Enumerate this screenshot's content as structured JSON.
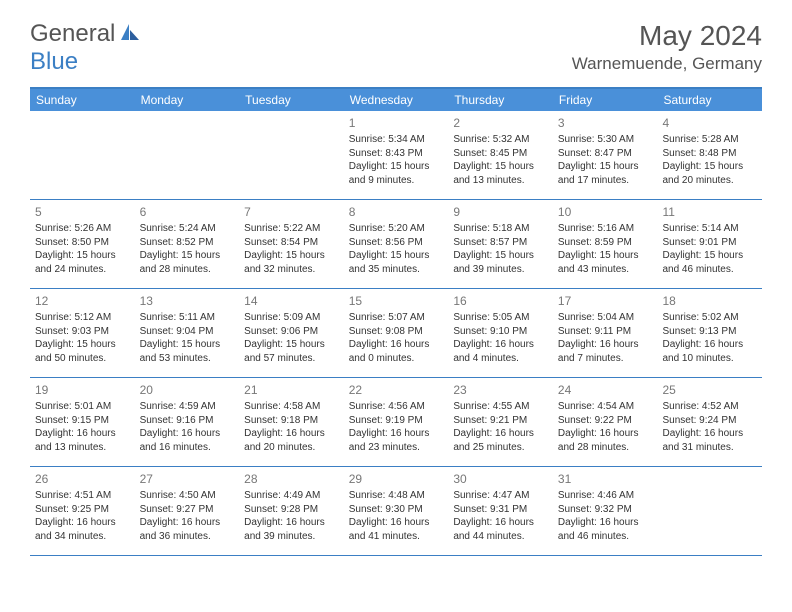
{
  "logo": {
    "text1": "General",
    "text2": "Blue"
  },
  "title": "May 2024",
  "location": "Warnemuende, Germany",
  "colors": {
    "header_bg": "#4a90d9",
    "border": "#3b7fc4",
    "text_gray": "#555555",
    "cell_text": "#333333",
    "daynum": "#777777",
    "white": "#ffffff"
  },
  "day_names": [
    "Sunday",
    "Monday",
    "Tuesday",
    "Wednesday",
    "Thursday",
    "Friday",
    "Saturday"
  ],
  "weeks": [
    [
      {
        "n": "",
        "empty": true
      },
      {
        "n": "",
        "empty": true
      },
      {
        "n": "",
        "empty": true
      },
      {
        "n": "1",
        "sunrise": "Sunrise: 5:34 AM",
        "sunset": "Sunset: 8:43 PM",
        "daylight": "Daylight: 15 hours and 9 minutes."
      },
      {
        "n": "2",
        "sunrise": "Sunrise: 5:32 AM",
        "sunset": "Sunset: 8:45 PM",
        "daylight": "Daylight: 15 hours and 13 minutes."
      },
      {
        "n": "3",
        "sunrise": "Sunrise: 5:30 AM",
        "sunset": "Sunset: 8:47 PM",
        "daylight": "Daylight: 15 hours and 17 minutes."
      },
      {
        "n": "4",
        "sunrise": "Sunrise: 5:28 AM",
        "sunset": "Sunset: 8:48 PM",
        "daylight": "Daylight: 15 hours and 20 minutes."
      }
    ],
    [
      {
        "n": "5",
        "sunrise": "Sunrise: 5:26 AM",
        "sunset": "Sunset: 8:50 PM",
        "daylight": "Daylight: 15 hours and 24 minutes."
      },
      {
        "n": "6",
        "sunrise": "Sunrise: 5:24 AM",
        "sunset": "Sunset: 8:52 PM",
        "daylight": "Daylight: 15 hours and 28 minutes."
      },
      {
        "n": "7",
        "sunrise": "Sunrise: 5:22 AM",
        "sunset": "Sunset: 8:54 PM",
        "daylight": "Daylight: 15 hours and 32 minutes."
      },
      {
        "n": "8",
        "sunrise": "Sunrise: 5:20 AM",
        "sunset": "Sunset: 8:56 PM",
        "daylight": "Daylight: 15 hours and 35 minutes."
      },
      {
        "n": "9",
        "sunrise": "Sunrise: 5:18 AM",
        "sunset": "Sunset: 8:57 PM",
        "daylight": "Daylight: 15 hours and 39 minutes."
      },
      {
        "n": "10",
        "sunrise": "Sunrise: 5:16 AM",
        "sunset": "Sunset: 8:59 PM",
        "daylight": "Daylight: 15 hours and 43 minutes."
      },
      {
        "n": "11",
        "sunrise": "Sunrise: 5:14 AM",
        "sunset": "Sunset: 9:01 PM",
        "daylight": "Daylight: 15 hours and 46 minutes."
      }
    ],
    [
      {
        "n": "12",
        "sunrise": "Sunrise: 5:12 AM",
        "sunset": "Sunset: 9:03 PM",
        "daylight": "Daylight: 15 hours and 50 minutes."
      },
      {
        "n": "13",
        "sunrise": "Sunrise: 5:11 AM",
        "sunset": "Sunset: 9:04 PM",
        "daylight": "Daylight: 15 hours and 53 minutes."
      },
      {
        "n": "14",
        "sunrise": "Sunrise: 5:09 AM",
        "sunset": "Sunset: 9:06 PM",
        "daylight": "Daylight: 15 hours and 57 minutes."
      },
      {
        "n": "15",
        "sunrise": "Sunrise: 5:07 AM",
        "sunset": "Sunset: 9:08 PM",
        "daylight": "Daylight: 16 hours and 0 minutes."
      },
      {
        "n": "16",
        "sunrise": "Sunrise: 5:05 AM",
        "sunset": "Sunset: 9:10 PM",
        "daylight": "Daylight: 16 hours and 4 minutes."
      },
      {
        "n": "17",
        "sunrise": "Sunrise: 5:04 AM",
        "sunset": "Sunset: 9:11 PM",
        "daylight": "Daylight: 16 hours and 7 minutes."
      },
      {
        "n": "18",
        "sunrise": "Sunrise: 5:02 AM",
        "sunset": "Sunset: 9:13 PM",
        "daylight": "Daylight: 16 hours and 10 minutes."
      }
    ],
    [
      {
        "n": "19",
        "sunrise": "Sunrise: 5:01 AM",
        "sunset": "Sunset: 9:15 PM",
        "daylight": "Daylight: 16 hours and 13 minutes."
      },
      {
        "n": "20",
        "sunrise": "Sunrise: 4:59 AM",
        "sunset": "Sunset: 9:16 PM",
        "daylight": "Daylight: 16 hours and 16 minutes."
      },
      {
        "n": "21",
        "sunrise": "Sunrise: 4:58 AM",
        "sunset": "Sunset: 9:18 PM",
        "daylight": "Daylight: 16 hours and 20 minutes."
      },
      {
        "n": "22",
        "sunrise": "Sunrise: 4:56 AM",
        "sunset": "Sunset: 9:19 PM",
        "daylight": "Daylight: 16 hours and 23 minutes."
      },
      {
        "n": "23",
        "sunrise": "Sunrise: 4:55 AM",
        "sunset": "Sunset: 9:21 PM",
        "daylight": "Daylight: 16 hours and 25 minutes."
      },
      {
        "n": "24",
        "sunrise": "Sunrise: 4:54 AM",
        "sunset": "Sunset: 9:22 PM",
        "daylight": "Daylight: 16 hours and 28 minutes."
      },
      {
        "n": "25",
        "sunrise": "Sunrise: 4:52 AM",
        "sunset": "Sunset: 9:24 PM",
        "daylight": "Daylight: 16 hours and 31 minutes."
      }
    ],
    [
      {
        "n": "26",
        "sunrise": "Sunrise: 4:51 AM",
        "sunset": "Sunset: 9:25 PM",
        "daylight": "Daylight: 16 hours and 34 minutes."
      },
      {
        "n": "27",
        "sunrise": "Sunrise: 4:50 AM",
        "sunset": "Sunset: 9:27 PM",
        "daylight": "Daylight: 16 hours and 36 minutes."
      },
      {
        "n": "28",
        "sunrise": "Sunrise: 4:49 AM",
        "sunset": "Sunset: 9:28 PM",
        "daylight": "Daylight: 16 hours and 39 minutes."
      },
      {
        "n": "29",
        "sunrise": "Sunrise: 4:48 AM",
        "sunset": "Sunset: 9:30 PM",
        "daylight": "Daylight: 16 hours and 41 minutes."
      },
      {
        "n": "30",
        "sunrise": "Sunrise: 4:47 AM",
        "sunset": "Sunset: 9:31 PM",
        "daylight": "Daylight: 16 hours and 44 minutes."
      },
      {
        "n": "31",
        "sunrise": "Sunrise: 4:46 AM",
        "sunset": "Sunset: 9:32 PM",
        "daylight": "Daylight: 16 hours and 46 minutes."
      },
      {
        "n": "",
        "empty": true
      }
    ]
  ]
}
